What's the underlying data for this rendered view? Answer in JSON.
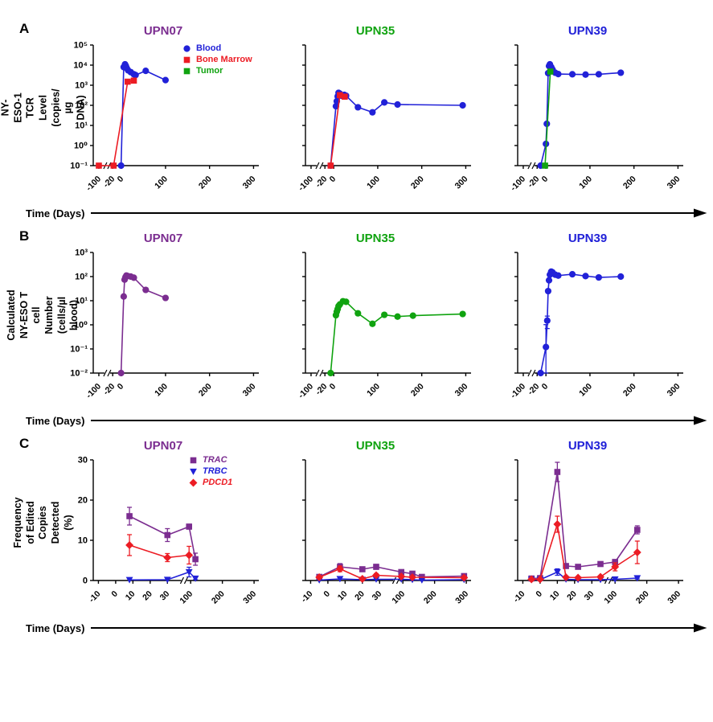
{
  "figure": {
    "panels": [
      {
        "label": "A",
        "ylabel": "NY-ESO-1 TCR Level\n(copies/µg DNA)",
        "xlabel": "Time (Days)",
        "legend_italic": false,
        "legend": [
          {
            "label": "Blood",
            "marker": "circle",
            "color": "#2121D8"
          },
          {
            "label": "Bone Marrow",
            "marker": "square",
            "color": "#EC1C24"
          },
          {
            "label": "Tumor",
            "marker": "square",
            "color": "#10A310"
          }
        ]
      },
      {
        "label": "B",
        "ylabel": "Calculated NY-ESO T cell\nNumber (cells/µl blood)",
        "xlabel": "Time (Days)",
        "legend_italic": false,
        "legend": []
      },
      {
        "label": "C",
        "ylabel": "Frequency of Edited\nCopies Detected (%)",
        "xlabel": "Time (Days)",
        "legend_italic": true,
        "legend": [
          {
            "label": "TRAC",
            "marker": "square",
            "color": "#7B2D90"
          },
          {
            "label": "TRBC",
            "marker": "triangle-down",
            "color": "#2121D8"
          },
          {
            "label": "PDCD1",
            "marker": "diamond",
            "color": "#EC1C24"
          }
        ]
      }
    ]
  },
  "chart_data": [
    {
      "panel": "A",
      "type": "line",
      "title": "UPN07",
      "title_color": "#7B2D90",
      "ylabel": "NY-ESO-1 TCR Level (copies/µg DNA)",
      "xlabel": "Time (Days)",
      "yscale": "log",
      "y_exp_range": [
        -1,
        5
      ],
      "show_y_labels": true,
      "x_segments": [
        {
          "domain": [
            -104,
            -96
          ],
          "frac": 0.07,
          "ticks": [
            -100
          ]
        },
        {
          "domain": [
            -26,
            312
          ],
          "frac": 0.93,
          "ticks": [
            -20,
            0,
            100,
            200,
            300
          ]
        }
      ],
      "series": [
        {
          "name": "Blood",
          "marker": "circle",
          "color": "#2121D8",
          "x": [
            -1,
            5,
            8,
            10,
            12,
            15,
            21,
            28,
            32,
            55,
            100
          ],
          "y": [
            0.1,
            8000,
            11000,
            9000,
            7000,
            5500,
            4500,
            3500,
            3200,
            5200,
            1800
          ]
        },
        {
          "name": "Bone Marrow",
          "marker": "square",
          "color": "#EC1C24",
          "x": [
            -100,
            -18,
            14,
            28
          ],
          "y": [
            0.1,
            0.1,
            1500,
            1700
          ]
        }
      ]
    },
    {
      "panel": "A",
      "type": "line",
      "title": "UPN35",
      "title_color": "#10A310",
      "ylabel": "NY-ESO-1 TCR Level (copies/µg DNA)",
      "xlabel": "Time (Days)",
      "yscale": "log",
      "y_exp_range": [
        -1,
        5
      ],
      "show_y_labels": false,
      "x_segments": [
        {
          "domain": [
            -104,
            -96
          ],
          "frac": 0.07,
          "ticks": [
            -100
          ]
        },
        {
          "domain": [
            -26,
            312
          ],
          "frac": 0.93,
          "ticks": [
            -20,
            0,
            100,
            200,
            300
          ]
        }
      ],
      "series": [
        {
          "name": "Blood",
          "marker": "circle",
          "color": "#2121D8",
          "x": [
            -7,
            5,
            7,
            9,
            11,
            14,
            18,
            24,
            28,
            55,
            88,
            115,
            145,
            293
          ],
          "y": [
            0.1,
            90,
            160,
            280,
            420,
            380,
            300,
            330,
            300,
            80,
            45,
            140,
            110,
            100
          ]
        },
        {
          "name": "Bone Marrow",
          "marker": "square",
          "color": "#EC1C24",
          "x": [
            -7,
            14,
            25
          ],
          "y": [
            0.1,
            320,
            270
          ]
        }
      ]
    },
    {
      "panel": "A",
      "type": "line",
      "title": "UPN39",
      "title_color": "#2121D8",
      "ylabel": "NY-ESO-1 TCR Level (copies/µg DNA)",
      "xlabel": "Time (Days)",
      "yscale": "log",
      "y_exp_range": [
        -1,
        5
      ],
      "show_y_labels": false,
      "x_segments": [
        {
          "domain": [
            -104,
            -96
          ],
          "frac": 0.07,
          "ticks": [
            -100
          ]
        },
        {
          "domain": [
            -26,
            312
          ],
          "frac": 0.93,
          "ticks": [
            -20,
            0,
            100,
            200,
            300
          ]
        }
      ],
      "series": [
        {
          "name": "Blood",
          "marker": "circle",
          "color": "#2121D8",
          "x": [
            -12,
            0,
            2,
            5,
            7,
            9,
            12,
            15,
            21,
            28,
            60,
            90,
            120,
            170
          ],
          "y": [
            0.1,
            1.2,
            12,
            4000,
            9000,
            11000,
            8000,
            6000,
            4200,
            3600,
            3500,
            3400,
            3500,
            4200
          ]
        },
        {
          "name": "Tumor",
          "marker": "square",
          "color": "#10A310",
          "x": [
            -2,
            10
          ],
          "y": [
            0.1,
            4800
          ]
        }
      ]
    },
    {
      "panel": "B",
      "type": "line",
      "title": "UPN07",
      "title_color": "#7B2D90",
      "ylabel": "Calculated NY-ESO T cell Number (cells/µl blood)",
      "xlabel": "Time (Days)",
      "yscale": "log",
      "y_exp_range": [
        -2,
        3
      ],
      "show_y_labels": true,
      "x_segments": [
        {
          "domain": [
            -104,
            -96
          ],
          "frac": 0.07,
          "ticks": [
            -100
          ]
        },
        {
          "domain": [
            -26,
            312
          ],
          "frac": 0.93,
          "ticks": [
            -20,
            0,
            100,
            200,
            300
          ]
        }
      ],
      "series": [
        {
          "name": "UPN07",
          "marker": "circle",
          "color": "#7B2D90",
          "x": [
            -1,
            5,
            7,
            9,
            11,
            14,
            21,
            28,
            55,
            100
          ],
          "y": [
            0.01,
            15,
            75,
            95,
            110,
            105,
            100,
            90,
            28,
            13
          ]
        }
      ]
    },
    {
      "panel": "B",
      "type": "line",
      "title": "UPN35",
      "title_color": "#10A310",
      "ylabel": "Calculated NY-ESO T cell Number (cells/µl blood)",
      "xlabel": "Time (Days)",
      "yscale": "log",
      "y_exp_range": [
        -2,
        3
      ],
      "show_y_labels": false,
      "x_segments": [
        {
          "domain": [
            -104,
            -96
          ],
          "frac": 0.07,
          "ticks": [
            -100
          ]
        },
        {
          "domain": [
            -26,
            312
          ],
          "frac": 0.93,
          "ticks": [
            -20,
            0,
            100,
            200,
            300
          ]
        }
      ],
      "series": [
        {
          "name": "UPN35",
          "marker": "circle",
          "color": "#10A310",
          "x": [
            -7,
            5,
            7,
            9,
            11,
            14,
            21,
            28,
            55,
            88,
            115,
            145,
            180,
            293
          ],
          "y": [
            0.01,
            2.5,
            3.5,
            4.5,
            6,
            7,
            9.5,
            9,
            3,
            1.1,
            2.6,
            2.2,
            2.4,
            2.8
          ]
        }
      ]
    },
    {
      "panel": "B",
      "type": "line",
      "title": "UPN39",
      "title_color": "#2121D8",
      "ylabel": "Calculated NY-ESO T cell Number (cells/µl blood)",
      "xlabel": "Time (Days)",
      "yscale": "log",
      "y_exp_range": [
        -2,
        3
      ],
      "show_y_labels": false,
      "x_segments": [
        {
          "domain": [
            -104,
            -96
          ],
          "frac": 0.07,
          "ticks": [
            -100
          ]
        },
        {
          "domain": [
            -26,
            312
          ],
          "frac": 0.93,
          "ticks": [
            -20,
            0,
            100,
            200,
            300
          ]
        }
      ],
      "series": [
        {
          "name": "UPN39",
          "marker": "circle",
          "color": "#2121D8",
          "x": [
            -12,
            0,
            3,
            5,
            7,
            9,
            12,
            15,
            21,
            28,
            60,
            90,
            120,
            170
          ],
          "y": [
            0.01,
            0.12,
            1.5,
            25,
            70,
            120,
            160,
            150,
            120,
            110,
            125,
            105,
            92,
            100
          ],
          "yerr": [
            0,
            0.9,
            0.8,
            0,
            0,
            0,
            0,
            0,
            0,
            0,
            0,
            0,
            0,
            0
          ]
        }
      ]
    },
    {
      "panel": "C",
      "type": "line",
      "title": "UPN07",
      "title_color": "#7B2D90",
      "ylabel": "Frequency of Edited Copies Detected (%)",
      "xlabel": "Time (Days)",
      "yscale": "linear",
      "ylim": [
        0,
        30
      ],
      "yticks": [
        0,
        10,
        20,
        30
      ],
      "show_y_labels": true,
      "x_segments": [
        {
          "domain": [
            -13,
            38
          ],
          "frac": 0.55,
          "ticks": [
            -10,
            0,
            10,
            20,
            30
          ]
        },
        {
          "domain": [
            88,
            315
          ],
          "frac": 0.45,
          "ticks": [
            100,
            200,
            300
          ]
        }
      ],
      "series": [
        {
          "name": "TRAC",
          "marker": "square",
          "color": "#7B2D90",
          "x": [
            8,
            30,
            95,
            115
          ],
          "y": [
            16,
            11.3,
            13.4,
            5.3
          ],
          "yerr": [
            2.2,
            1.6,
            0.6,
            1.5
          ]
        },
        {
          "name": "TRBC",
          "marker": "triangle-down",
          "color": "#2121D8",
          "x": [
            8,
            30,
            95,
            115
          ],
          "y": [
            0.15,
            0.2,
            2.1,
            0.5
          ],
          "yerr": [
            0,
            0,
            1.2,
            0.3
          ]
        },
        {
          "name": "PDCD1",
          "marker": "diamond",
          "color": "#EC1C24",
          "x": [
            8,
            30,
            95
          ],
          "y": [
            8.8,
            5.7,
            6.3
          ],
          "yerr": [
            2.6,
            1.0,
            2.2
          ]
        }
      ]
    },
    {
      "panel": "C",
      "type": "line",
      "title": "UPN35",
      "title_color": "#10A310",
      "ylabel": "Frequency of Edited Copies Detected (%)",
      "xlabel": "Time (Days)",
      "yscale": "linear",
      "ylim": [
        0,
        30
      ],
      "yticks": [
        0,
        10,
        20,
        30
      ],
      "show_y_labels": false,
      "x_segments": [
        {
          "domain": [
            -13,
            38
          ],
          "frac": 0.55,
          "ticks": [
            -10,
            0,
            10,
            20,
            30
          ]
        },
        {
          "domain": [
            88,
            315
          ],
          "frac": 0.45,
          "ticks": [
            100,
            200,
            300
          ]
        }
      ],
      "series": [
        {
          "name": "TRAC",
          "marker": "square",
          "color": "#7B2D90",
          "x": [
            -5,
            7,
            20,
            28,
            95,
            130,
            160,
            293
          ],
          "y": [
            0.9,
            3.4,
            2.8,
            3.4,
            2.1,
            1.7,
            0.9,
            1.1
          ],
          "yerr": [
            0.3,
            0.8,
            0.5,
            0.6,
            0.5,
            0.4,
            0.3,
            0.4
          ]
        },
        {
          "name": "TRBC",
          "marker": "triangle-down",
          "color": "#2121D8",
          "x": [
            -5,
            7,
            20,
            28,
            95,
            130,
            160,
            293
          ],
          "y": [
            0.1,
            0.4,
            0.2,
            0.3,
            0.3,
            0.2,
            0.1,
            0.2
          ]
        },
        {
          "name": "PDCD1",
          "marker": "diamond",
          "color": "#EC1C24",
          "x": [
            -5,
            7,
            20,
            28,
            95,
            130,
            293
          ],
          "y": [
            0.8,
            2.9,
            0.4,
            1.3,
            1.0,
            0.8,
            0.7
          ],
          "yerr": [
            0.3,
            0.7,
            0.2,
            0.4,
            0.3,
            0.2,
            0.3
          ]
        }
      ]
    },
    {
      "panel": "C",
      "type": "line",
      "title": "UPN39",
      "title_color": "#2121D8",
      "ylabel": "Frequency of Edited Copies Detected (%)",
      "xlabel": "Time (Days)",
      "yscale": "linear",
      "ylim": [
        0,
        30
      ],
      "yticks": [
        0,
        10,
        20,
        30
      ],
      "show_y_labels": false,
      "x_segments": [
        {
          "domain": [
            -13,
            38
          ],
          "frac": 0.55,
          "ticks": [
            -10,
            0,
            10,
            20,
            30
          ]
        },
        {
          "domain": [
            88,
            315
          ],
          "frac": 0.45,
          "ticks": [
            100,
            200,
            300
          ]
        }
      ],
      "series": [
        {
          "name": "TRAC",
          "marker": "square",
          "color": "#7B2D90",
          "x": [
            -5,
            0,
            10,
            15,
            22,
            35,
            100,
            170
          ],
          "y": [
            0.5,
            0.6,
            27,
            3.6,
            3.4,
            4.1,
            4.6,
            12.6
          ],
          "yerr": [
            0.2,
            0.2,
            2.4,
            0.5,
            0.4,
            0.5,
            0.6,
            1.0
          ]
        },
        {
          "name": "TRBC",
          "marker": "triangle-down",
          "color": "#2121D8",
          "x": [
            -5,
            0,
            10,
            15,
            22,
            35,
            100,
            170
          ],
          "y": [
            0.2,
            0.2,
            2.1,
            0.3,
            0.2,
            0.2,
            0.3,
            0.6
          ],
          "yerr": [
            0,
            0,
            0.8,
            0,
            0,
            0,
            0,
            0.2
          ]
        },
        {
          "name": "PDCD1",
          "marker": "diamond",
          "color": "#EC1C24",
          "x": [
            -5,
            0,
            10,
            15,
            22,
            35,
            100,
            170
          ],
          "y": [
            0.3,
            0.3,
            14,
            0.8,
            0.7,
            0.9,
            3.4,
            7.0
          ],
          "yerr": [
            0.1,
            0.1,
            2.0,
            0.2,
            0.2,
            0.2,
            1.0,
            2.8
          ]
        }
      ]
    }
  ]
}
